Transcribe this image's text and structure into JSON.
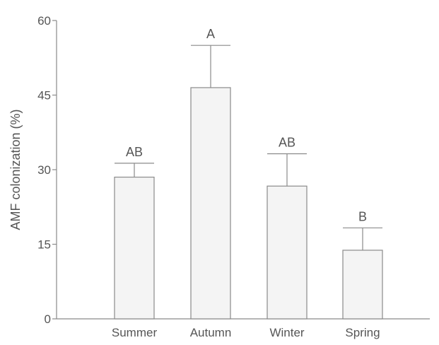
{
  "chart_data": {
    "type": "bar",
    "categories": [
      "Summer",
      "Autumn",
      "Winter",
      "Spring"
    ],
    "values": [
      28.5,
      46.5,
      26.7,
      13.8
    ],
    "errors": [
      2.8,
      8.5,
      6.5,
      4.5
    ],
    "significance_labels": [
      "AB",
      "A",
      "AB",
      "B"
    ],
    "title": "",
    "xlabel": "",
    "ylabel": "AMF colonization (%)",
    "ylim": [
      0,
      60
    ],
    "yticks": [
      0,
      15,
      30,
      45,
      60
    ],
    "ytick_labels": [
      "0",
      "15",
      "30",
      "45",
      "60"
    ],
    "grid": false,
    "legend": "none",
    "colors": {
      "bar_fill": "#f4f4f4",
      "bar_stroke": "#8a8a8a",
      "axis": "#8a8a8a",
      "text": "#555555"
    }
  }
}
